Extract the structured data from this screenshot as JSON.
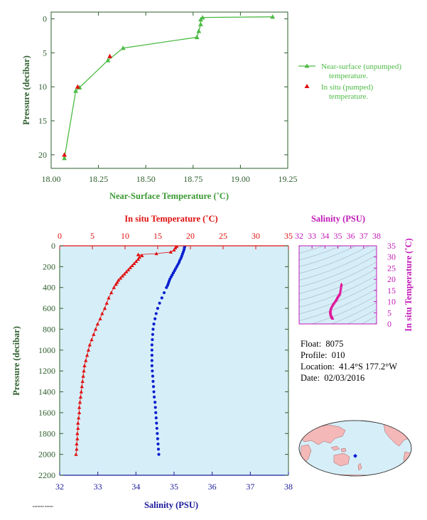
{
  "colors": {
    "green": "#4dbb45",
    "green_text": "#3a9a33",
    "axis_green": "#2e5e2e",
    "red": "#e01010",
    "blue": "#0a1fd0",
    "magenta": "#e0189a",
    "magenta_text": "#c21ab8",
    "panel_bg": "#d6eef8",
    "navy_text": "#1a1a9a"
  },
  "meta": {
    "float_label": "Float:",
    "float_value": "8075",
    "profile_label": "Profile:",
    "profile_value": "010",
    "location_label": "Location:",
    "location_value": "41.4°S  177.2°W",
    "date_label": "Date:",
    "date_value": "02/03/2016"
  },
  "tiny_caption": "rrrrrrrrrrrr  rrrrrrrrr",
  "chart_data": [
    {
      "type": "line",
      "xlabel": "Near-Surface Temperature (˚C)",
      "ylabel": "Pressure (decibar)",
      "xlim": [
        18.0,
        19.25
      ],
      "ylim": [
        22,
        -1
      ],
      "xticks": [
        "18.00",
        "18.25",
        "18.50",
        "18.75",
        "19.00",
        "19.25"
      ],
      "yticks": [
        "0",
        "5",
        "10",
        "15",
        "20"
      ],
      "legend_position": "right",
      "series": [
        {
          "name": "Near-surface (unpumped) temperature.",
          "marker": "triangle",
          "x": [
            19.17,
            18.8,
            18.79,
            18.79,
            18.78,
            18.77,
            18.38,
            18.3,
            18.15,
            18.13,
            18.07
          ],
          "y": [
            -0.3,
            -0.2,
            0.1,
            0.8,
            1.8,
            2.7,
            4.3,
            6.1,
            10.1,
            10.6,
            20.5
          ]
        },
        {
          "name": "In situ (pumped) temperature.",
          "marker": "triangle",
          "x": [
            18.31,
            18.14,
            18.07
          ],
          "y": [
            5.5,
            10.0,
            20.0
          ]
        }
      ]
    },
    {
      "type": "line",
      "xlabel_top": "In situ Temperature (˚C)",
      "xlabel_bottom": "Salinity (PSU)",
      "ylabel": "Pressure (decibar)",
      "temp_lim": [
        0,
        35
      ],
      "sal_lim": [
        32,
        38
      ],
      "ylim": [
        2200,
        0
      ],
      "temp_ticks": [
        "0",
        "5",
        "10",
        "15",
        "20",
        "25",
        "30",
        "35"
      ],
      "sal_ticks": [
        "32",
        "33",
        "34",
        "35",
        "36",
        "37",
        "38"
      ],
      "yticks": [
        "0",
        "200",
        "400",
        "600",
        "800",
        "1000",
        "1200",
        "1400",
        "1600",
        "1800",
        "2000",
        "2200"
      ],
      "series": [
        {
          "name": "Temperature",
          "marker": "triangle",
          "pressure": [
            5,
            20,
            40,
            60,
            75,
            85,
            95,
            110,
            130,
            150,
            170,
            190,
            210,
            230,
            250,
            270,
            290,
            310,
            330,
            350,
            370,
            400,
            450,
            500,
            550,
            600,
            650,
            700,
            750,
            800,
            850,
            900,
            950,
            1000,
            1050,
            1100,
            1150,
            1200,
            1250,
            1300,
            1350,
            1400,
            1450,
            1500,
            1550,
            1600,
            1650,
            1700,
            1750,
            1800,
            1850,
            1900,
            1950,
            2000
          ],
          "temp": [
            17.9,
            17.7,
            17.5,
            17.0,
            14.8,
            12.0,
            12.6,
            12.2,
            12.0,
            11.7,
            11.4,
            11.1,
            10.8,
            10.5,
            10.2,
            9.9,
            9.6,
            9.3,
            9.0,
            8.8,
            8.6,
            8.3,
            7.9,
            7.5,
            7.2,
            6.9,
            6.5,
            6.2,
            5.8,
            5.5,
            5.2,
            4.9,
            4.6,
            4.4,
            4.2,
            4.0,
            3.8,
            3.7,
            3.6,
            3.5,
            3.4,
            3.3,
            3.2,
            3.1,
            3.0,
            3.0,
            2.9,
            2.8,
            2.8,
            2.7,
            2.7,
            2.6,
            2.6,
            2.5
          ]
        },
        {
          "name": "Salinity",
          "marker": "dot",
          "pressure": [
            5,
            20,
            40,
            60,
            80,
            100,
            120,
            140,
            160,
            180,
            200,
            220,
            240,
            260,
            280,
            300,
            320,
            340,
            360,
            380,
            400,
            450,
            500,
            550,
            600,
            650,
            700,
            750,
            800,
            850,
            900,
            950,
            1000,
            1050,
            1100,
            1150,
            1200,
            1250,
            1300,
            1350,
            1400,
            1450,
            1500,
            1550,
            1600,
            1650,
            1700,
            1750,
            1800,
            1850,
            1900,
            1950,
            2000
          ],
          "sal": [
            35.28,
            35.27,
            35.26,
            35.24,
            35.22,
            35.2,
            35.18,
            35.15,
            35.13,
            35.1,
            35.07,
            35.04,
            35.01,
            34.98,
            34.95,
            34.92,
            34.89,
            34.87,
            34.85,
            34.83,
            34.8,
            34.74,
            34.68,
            34.62,
            34.57,
            34.53,
            34.5,
            34.47,
            34.45,
            34.44,
            34.43,
            34.42,
            34.42,
            34.42,
            34.42,
            34.42,
            34.43,
            34.44,
            34.45,
            34.46,
            34.47,
            34.48,
            34.5,
            34.51,
            34.52,
            34.53,
            34.54,
            34.55,
            34.56,
            34.57,
            34.58,
            34.59,
            34.6
          ]
        }
      ]
    },
    {
      "type": "scatter",
      "title": "Salinity (PSU)",
      "ylabel": "In situ Temperature (˚C)",
      "xlim": [
        32,
        38
      ],
      "ylim": [
        0,
        35
      ],
      "xticks": [
        "32",
        "33",
        "34",
        "35",
        "36",
        "37",
        "38"
      ],
      "yticks": [
        "0",
        "5",
        "10",
        "15",
        "20",
        "25",
        "30",
        "35"
      ],
      "grid": "density-contours",
      "x": [
        34.6,
        34.58,
        34.56,
        34.54,
        34.52,
        34.5,
        34.48,
        34.46,
        34.44,
        34.43,
        34.42,
        34.42,
        34.43,
        34.45,
        34.48,
        34.52,
        34.57,
        34.62,
        34.68,
        34.74,
        34.8,
        34.85,
        34.89,
        34.92,
        34.95,
        35.0,
        35.05,
        35.1,
        35.14,
        35.18,
        35.21,
        35.24,
        35.26,
        35.28
      ],
      "y": [
        2.5,
        2.7,
        2.9,
        3.1,
        3.3,
        3.5,
        3.8,
        4.1,
        4.5,
        4.9,
        5.3,
        5.7,
        6.2,
        6.7,
        7.2,
        7.7,
        8.2,
        8.7,
        9.2,
        9.7,
        10.2,
        10.6,
        11.0,
        11.4,
        11.8,
        12.2,
        12.6,
        13.0,
        13.4,
        14.0,
        15.0,
        16.0,
        17.0,
        17.8
      ]
    }
  ],
  "map": {
    "marker_lat": -41.4,
    "marker_lon": -177.2
  }
}
